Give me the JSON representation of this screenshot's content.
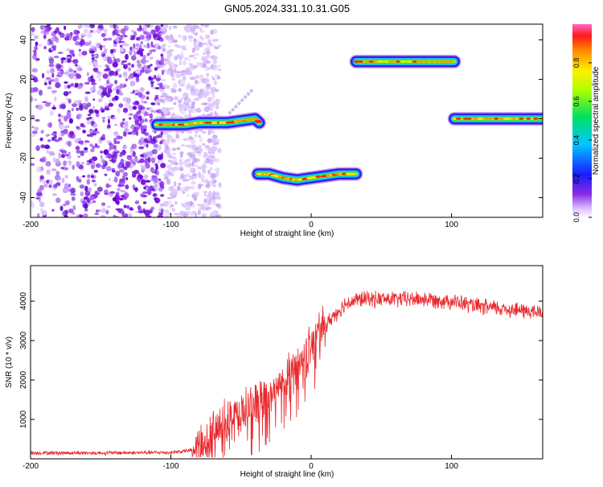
{
  "title": "GN05.2024.331.10.31.G05",
  "chart_data": [
    {
      "type": "heatmap",
      "xlabel": "Height of straight line (km)",
      "ylabel": "Frequency (Hz)",
      "xlim": [
        -200,
        165
      ],
      "ylim": [
        -50,
        48
      ],
      "xticks": [
        -200,
        -100,
        0,
        100
      ],
      "yticks": [
        -40,
        -20,
        0,
        20,
        40
      ],
      "grid": false,
      "colorbar": {
        "label": "Normalized spectral amplitude",
        "range": [
          0,
          1
        ],
        "ticks": [
          "0.0",
          "0.2",
          "0.4",
          "0.6",
          "0.8"
        ]
      },
      "tracks": [
        {
          "x": [
            -110,
            -100,
            -90,
            -80,
            -70,
            -60,
            -50,
            -40,
            -37
          ],
          "y": [
            -3,
            -3,
            -3,
            -2,
            -2,
            -2,
            -1,
            0,
            -2
          ]
        },
        {
          "x": [
            -38,
            -30,
            -20,
            -10,
            0,
            10,
            20,
            32
          ],
          "y": [
            -28,
            -28,
            -30,
            -31,
            -30,
            -29,
            -28,
            -28
          ]
        },
        {
          "x": [
            32,
            50,
            70,
            90,
            102
          ],
          "y": [
            29,
            29,
            29,
            29,
            29
          ]
        },
        {
          "x": [
            102,
            120,
            140,
            165
          ],
          "y": [
            0,
            0,
            0,
            0
          ]
        }
      ],
      "noise_region": {
        "x": [
          -200,
          -80
        ],
        "y": [
          -50,
          48
        ]
      }
    },
    {
      "type": "line",
      "xlabel": "Height of straight line (km)",
      "ylabel": "SNR (10 * v/v)",
      "xlim": [
        -200,
        165
      ],
      "ylim": [
        0,
        4900
      ],
      "xticks": [
        -200,
        -100,
        0,
        100
      ],
      "yticks": [
        1000,
        2000,
        3000,
        4000
      ],
      "grid": false,
      "series": [
        {
          "color": "#e8282c",
          "x": [
            -200,
            -150,
            -100,
            -85,
            -75,
            -65,
            -55,
            -45,
            -35,
            -25,
            -15,
            -5,
            5,
            15,
            25,
            35,
            45,
            60,
            80,
            100,
            120,
            140,
            165
          ],
          "y": [
            150,
            150,
            160,
            220,
            450,
            750,
            1050,
            1300,
            1450,
            1700,
            2100,
            2550,
            3100,
            3600,
            3950,
            4050,
            4050,
            4050,
            4050,
            4000,
            3850,
            3800,
            3700
          ]
        }
      ]
    }
  ]
}
